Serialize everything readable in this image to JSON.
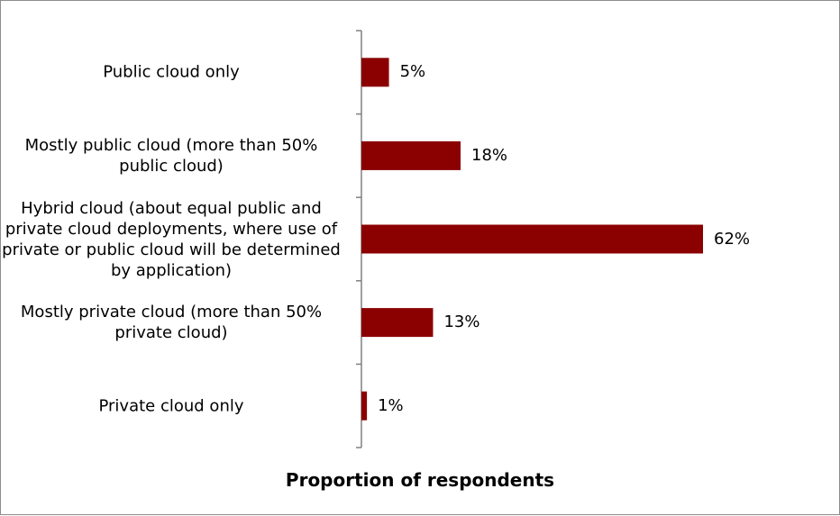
{
  "chart_data": {
    "type": "bar",
    "orientation": "horizontal",
    "categories": [
      "Public cloud only",
      "Mostly public cloud (more than 50% public cloud)",
      "Hybrid cloud (about equal public and private cloud deployments, where use of private or public cloud will be determined by application)",
      "Mostly private cloud (more than 50% private cloud)",
      "Private cloud only"
    ],
    "values": [
      5,
      18,
      62,
      13,
      1
    ],
    "value_labels": [
      "5%",
      "18%",
      "62%",
      "13%",
      "1%"
    ],
    "xlabel": "Proportion of respondents",
    "ylabel": "",
    "xlim": [
      0,
      85
    ],
    "grid": false,
    "legend": "none",
    "bar_color": "#8b0000"
  }
}
